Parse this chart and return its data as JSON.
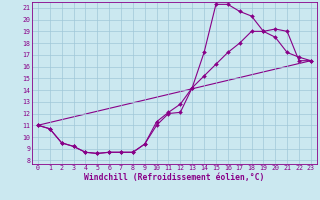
{
  "xlabel": "Windchill (Refroidissement éolien,°C)",
  "bg_color": "#cbe8f0",
  "grid_color": "#a0c8d8",
  "line_color": "#880088",
  "xlim": [
    -0.5,
    23.5
  ],
  "ylim": [
    7.7,
    21.5
  ],
  "xticks": [
    0,
    1,
    2,
    3,
    4,
    5,
    6,
    7,
    8,
    9,
    10,
    11,
    12,
    13,
    14,
    15,
    16,
    17,
    18,
    19,
    20,
    21,
    22,
    23
  ],
  "yticks": [
    8,
    9,
    10,
    11,
    12,
    13,
    14,
    15,
    16,
    17,
    18,
    19,
    20,
    21
  ],
  "line1_x": [
    0,
    1,
    2,
    3,
    4,
    5,
    6,
    7,
    8,
    9,
    10,
    11,
    12,
    13,
    14,
    15,
    16,
    17,
    18,
    19,
    20,
    21,
    22,
    23
  ],
  "line1_y": [
    11.0,
    10.7,
    9.5,
    9.2,
    8.7,
    8.6,
    8.7,
    8.7,
    8.7,
    9.4,
    11.0,
    12.0,
    12.1,
    14.2,
    17.2,
    21.3,
    21.3,
    20.7,
    20.3,
    19.0,
    18.5,
    17.2,
    16.8,
    16.5
  ],
  "line2_x": [
    0,
    1,
    2,
    3,
    4,
    5,
    6,
    7,
    8,
    9,
    10,
    11,
    12,
    13,
    14,
    15,
    16,
    17,
    18,
    19,
    20,
    21,
    22,
    23
  ],
  "line2_y": [
    11.0,
    10.7,
    9.5,
    9.2,
    8.7,
    8.6,
    8.7,
    8.7,
    8.7,
    9.4,
    11.3,
    12.1,
    12.8,
    14.2,
    15.2,
    16.2,
    17.2,
    18.0,
    19.0,
    19.0,
    19.2,
    19.0,
    16.5,
    16.5
  ],
  "line3_x": [
    0,
    23
  ],
  "line3_y": [
    11.0,
    16.5
  ],
  "markersize": 2.0,
  "linewidth": 0.8,
  "tick_fontsize": 4.8,
  "label_fontsize": 5.8
}
